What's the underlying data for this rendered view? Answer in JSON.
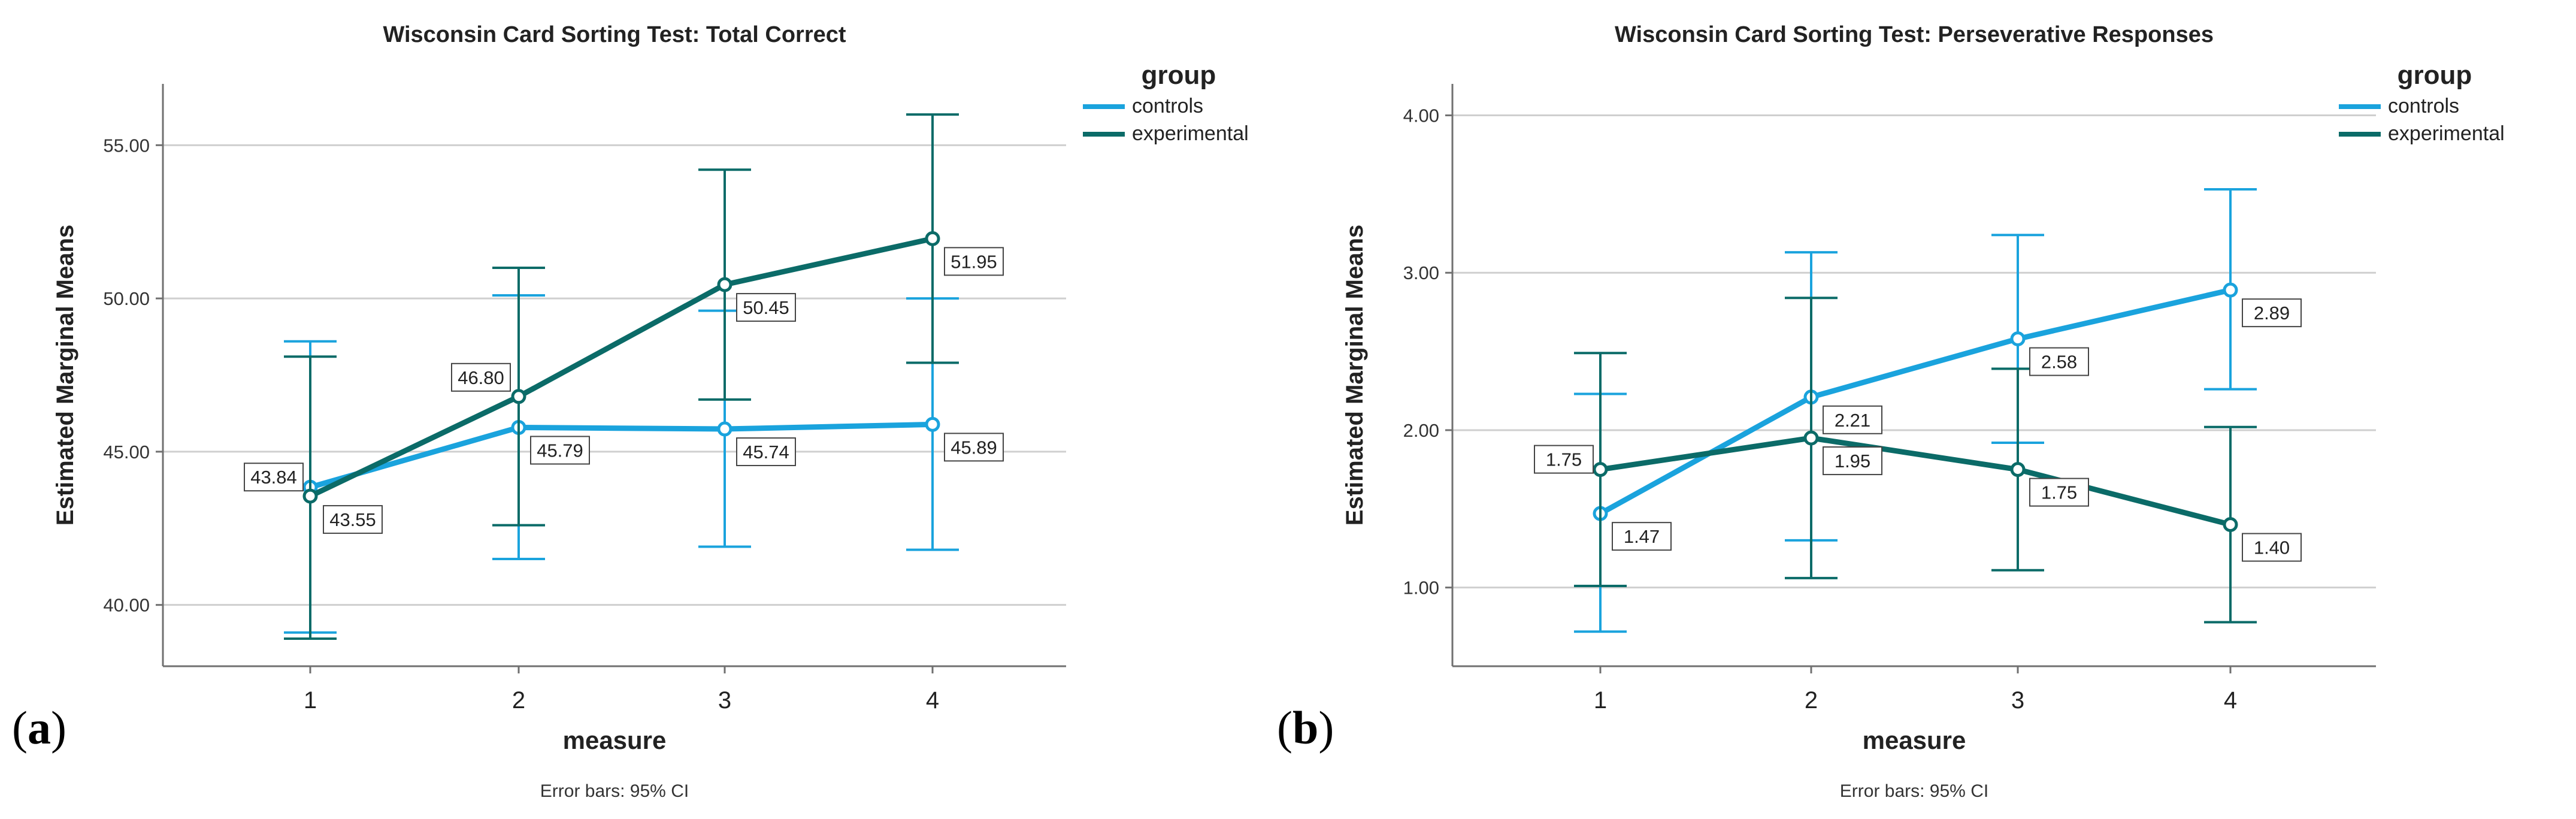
{
  "figure": {
    "panel_a_label": "a",
    "panel_b_label": "b",
    "colors": {
      "controls": "#1aa3dd",
      "experimental": "#0b6b68",
      "grid": "#cfcfcf",
      "axis": "#707070"
    }
  },
  "chart_data": [
    {
      "type": "line",
      "title": "Wisconsin Card Sorting Test: Total Correct",
      "xlabel": "measure",
      "ylabel": "Estimated Marginal Means",
      "footnote": "Error bars: 95% CI",
      "legend_title": "group",
      "legend_position": "top-right",
      "categories": [
        "1",
        "2",
        "3",
        "4"
      ],
      "ylim": [
        38.0,
        57.0
      ],
      "yticks": [
        40.0,
        45.0,
        50.0,
        55.0
      ],
      "ytick_labels": [
        "40.00",
        "45.00",
        "50.00",
        "55.00"
      ],
      "grid": true,
      "series": [
        {
          "name": "controls",
          "values": [
            43.84,
            45.79,
            45.74,
            45.89
          ],
          "labels": [
            "43.84",
            "45.79",
            "45.74",
            "45.89"
          ],
          "ci_low": [
            39.1,
            41.5,
            41.9,
            41.8
          ],
          "ci_high": [
            48.6,
            50.1,
            49.6,
            50.0
          ]
        },
        {
          "name": "experimental",
          "values": [
            43.55,
            46.8,
            50.45,
            51.95
          ],
          "labels": [
            "43.55",
            "46.80",
            "50.45",
            "51.95"
          ],
          "ci_low": [
            38.9,
            42.6,
            46.7,
            47.9
          ],
          "ci_high": [
            48.1,
            51.0,
            54.2,
            56.0
          ]
        }
      ]
    },
    {
      "type": "line",
      "title": "Wisconsin Card Sorting Test: Perseverative Responses",
      "xlabel": "measure",
      "ylabel": "Estimated Marginal Means",
      "footnote": "Error bars: 95% CI",
      "legend_title": "group",
      "legend_position": "top-right",
      "categories": [
        "1",
        "2",
        "3",
        "4"
      ],
      "ylim": [
        0.5,
        4.2
      ],
      "yticks": [
        1.0,
        2.0,
        3.0,
        4.0
      ],
      "ytick_labels": [
        "1.00",
        "2.00",
        "3.00",
        "4.00"
      ],
      "grid": true,
      "series": [
        {
          "name": "controls",
          "values": [
            1.47,
            2.21,
            2.58,
            2.89
          ],
          "labels": [
            "1.47",
            "2.21",
            "2.58",
            "2.89"
          ],
          "ci_low": [
            0.72,
            1.3,
            1.92,
            2.26
          ],
          "ci_high": [
            2.23,
            3.13,
            3.24,
            3.53
          ]
        },
        {
          "name": "experimental",
          "values": [
            1.75,
            1.95,
            1.75,
            1.4
          ],
          "labels": [
            "1.75",
            "1.95",
            "1.75",
            "1.40"
          ],
          "ci_low": [
            1.01,
            1.06,
            1.11,
            0.78
          ],
          "ci_high": [
            2.49,
            2.84,
            2.39,
            2.02
          ]
        }
      ]
    }
  ]
}
